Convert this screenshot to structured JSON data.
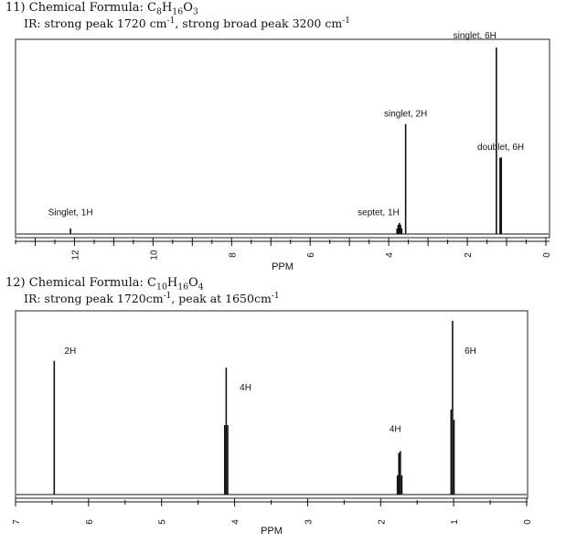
{
  "problems": [
    {
      "title_prefix": "11) Chemical Formula: ",
      "formula": [
        [
          "C",
          ""
        ],
        [
          "8",
          "sub"
        ],
        [
          "H",
          ""
        ],
        [
          "16",
          "sub"
        ],
        [
          "O",
          ""
        ],
        [
          "3",
          "sub"
        ]
      ],
      "ir_parts": [
        [
          "IR: strong peak 1720 cm",
          ""
        ],
        [
          "-1",
          "sup"
        ],
        [
          ", strong broad peak 3200 cm",
          ""
        ],
        [
          "-1",
          "sup"
        ]
      ]
    },
    {
      "title_prefix": "12) Chemical Formula: ",
      "formula": [
        [
          "C",
          ""
        ],
        [
          "10",
          "sub"
        ],
        [
          "H",
          ""
        ],
        [
          "16",
          "sub"
        ],
        [
          "O",
          ""
        ],
        [
          "4",
          "sub"
        ]
      ],
      "ir_parts": [
        [
          "IR: strong peak 1720cm",
          ""
        ],
        [
          "-1",
          "sup"
        ],
        [
          ", peak at 1650cm",
          ""
        ],
        [
          "-1",
          "sup"
        ]
      ]
    }
  ],
  "chart_data": [
    {
      "type": "nmr-spectrum",
      "xlabel": "PPM",
      "xlim": [
        13.5,
        0
      ],
      "tick_labels": [
        "12",
        "10",
        "8",
        "6",
        "4",
        "2",
        "0"
      ],
      "tick_values": [
        12,
        10,
        8,
        6,
        4,
        2,
        0
      ],
      "major_tick_step": 1,
      "minor_tick_step": 0.5,
      "ymax": 1.0,
      "peaks": [
        {
          "ppm": 12.1,
          "height": 0.03
        },
        {
          "ppm": 3.79,
          "height": 0.03
        },
        {
          "ppm": 3.76,
          "height": 0.05
        },
        {
          "ppm": 3.73,
          "height": 0.06
        },
        {
          "ppm": 3.7,
          "height": 0.05
        },
        {
          "ppm": 3.67,
          "height": 0.03
        },
        {
          "ppm": 3.57,
          "height": 0.59
        },
        {
          "ppm": 1.26,
          "height": 1.0
        },
        {
          "ppm": 1.165,
          "height": 0.41
        },
        {
          "ppm": 1.135,
          "height": 0.41
        }
      ],
      "annotations": [
        {
          "text": "singlet, 6H",
          "ppm": 1.26,
          "height": 1.04,
          "align": "end"
        },
        {
          "text": "singlet, 2H",
          "ppm": 3.57,
          "height": 0.62,
          "align": "middle"
        },
        {
          "text": "doublet, 6H",
          "ppm": 1.15,
          "height": 0.44,
          "align": "middle"
        },
        {
          "text": "Singlet, 1H",
          "ppm": 12.1,
          "height": 0.09,
          "align": "middle"
        },
        {
          "text": "septet, 1H",
          "ppm": 3.73,
          "height": 0.09,
          "align": "end"
        }
      ]
    },
    {
      "type": "nmr-spectrum",
      "xlabel": "PPM",
      "xlim": [
        7,
        0
      ],
      "tick_labels": [
        "7",
        "6",
        "5",
        "4",
        "3",
        "2",
        "1",
        "0"
      ],
      "tick_values": [
        7,
        6,
        5,
        4,
        3,
        2,
        1,
        0
      ],
      "major_tick_step": 1,
      "minor_tick_step": 0.5,
      "ymax": 1.0,
      "peaks": [
        {
          "ppm": 6.47,
          "height": 0.77
        },
        {
          "ppm": 4.135,
          "height": 0.4
        },
        {
          "ppm": 4.115,
          "height": 0.73
        },
        {
          "ppm": 4.095,
          "height": 0.4
        },
        {
          "ppm": 1.77,
          "height": 0.11
        },
        {
          "ppm": 1.75,
          "height": 0.24
        },
        {
          "ppm": 1.73,
          "height": 0.25
        },
        {
          "ppm": 1.71,
          "height": 0.11
        },
        {
          "ppm": 1.035,
          "height": 0.49
        },
        {
          "ppm": 1.015,
          "height": 1.0
        },
        {
          "ppm": 0.995,
          "height": 0.43
        }
      ],
      "annotations": [
        {
          "text": "2H",
          "ppm": 6.25,
          "height": 0.8,
          "align": "middle"
        },
        {
          "text": "4H",
          "ppm": 3.85,
          "height": 0.59,
          "align": "middle"
        },
        {
          "text": "4H",
          "ppm": 1.8,
          "height": 0.35,
          "align": "middle"
        },
        {
          "text": "6H",
          "ppm": 0.77,
          "height": 0.8,
          "align": "middle"
        }
      ]
    }
  ]
}
